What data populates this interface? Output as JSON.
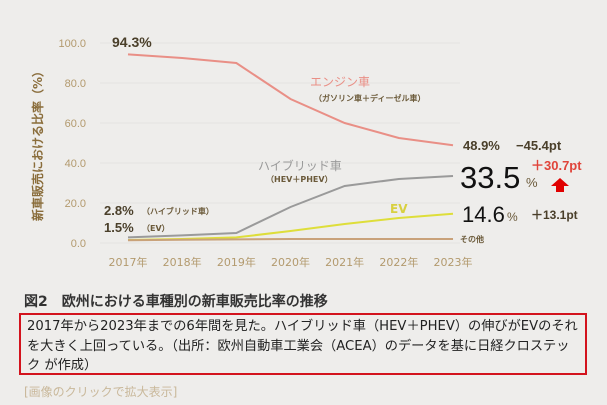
{
  "chart_data": {
    "type": "line",
    "ylabel": "新車販売における比率（%）",
    "ylim": [
      0,
      100
    ],
    "yticks": [
      "0.0",
      "20.0",
      "40.0",
      "60.0",
      "80.0",
      "100.0"
    ],
    "categories": [
      "2017年",
      "2018年",
      "2019年",
      "2020年",
      "2021年",
      "2022年",
      "2023年"
    ],
    "series": [
      {
        "name": "エンジン車",
        "sub": "（ガソリン車＋ディーゼル車）",
        "color": "#e98f86",
        "values": [
          94.3,
          92.5,
          90.0,
          72.0,
          60.0,
          52.5,
          48.9
        ]
      },
      {
        "name": "ハイブリッド車",
        "sub": "（HEV＋PHEV）",
        "color": "#9a9a9a",
        "values": [
          2.8,
          3.8,
          5.0,
          18.0,
          28.5,
          32.0,
          33.5
        ]
      },
      {
        "name": "EV",
        "color": "#dede3a",
        "values": [
          1.5,
          2.0,
          2.8,
          6.0,
          9.5,
          12.5,
          14.6
        ]
      },
      {
        "name": "その他",
        "color": "#c9a27a",
        "values": [
          1.4,
          1.6,
          1.8,
          2.0,
          2.0,
          2.0,
          2.0
        ]
      }
    ],
    "annotations": {
      "engine_start": "94.3%",
      "hybrid_start": "2.8%",
      "hybrid_start_note": "（ハイブリッド車）",
      "ev_start": "1.5%",
      "ev_start_note": "（EV）",
      "engine_end": "48.9%",
      "engine_change": "−45.4pt",
      "hybrid_end": "33.5",
      "hybrid_end_unit": "%",
      "hybrid_change": "＋30.7pt",
      "ev_end": "14.6",
      "ev_end_unit": "%",
      "ev_change": "＋13.1pt"
    }
  },
  "figure": {
    "title": "図2　欧州における車種別の新車販売比率の推移",
    "caption": "2017年から2023年までの6年間を見た。ハイブリッド車（HEV＋PHEV）の伸びがEVのそれを大きく上回っている。（出所：欧州自動車工業会（ACEA）のデータを基に日経クロステック が作成）",
    "zoom_link": "[画像のクリックで拡大表示]"
  },
  "colors": {
    "up_arrow": "#e00000",
    "highlight": "#e0443a",
    "caption_border": "#d3131d"
  }
}
